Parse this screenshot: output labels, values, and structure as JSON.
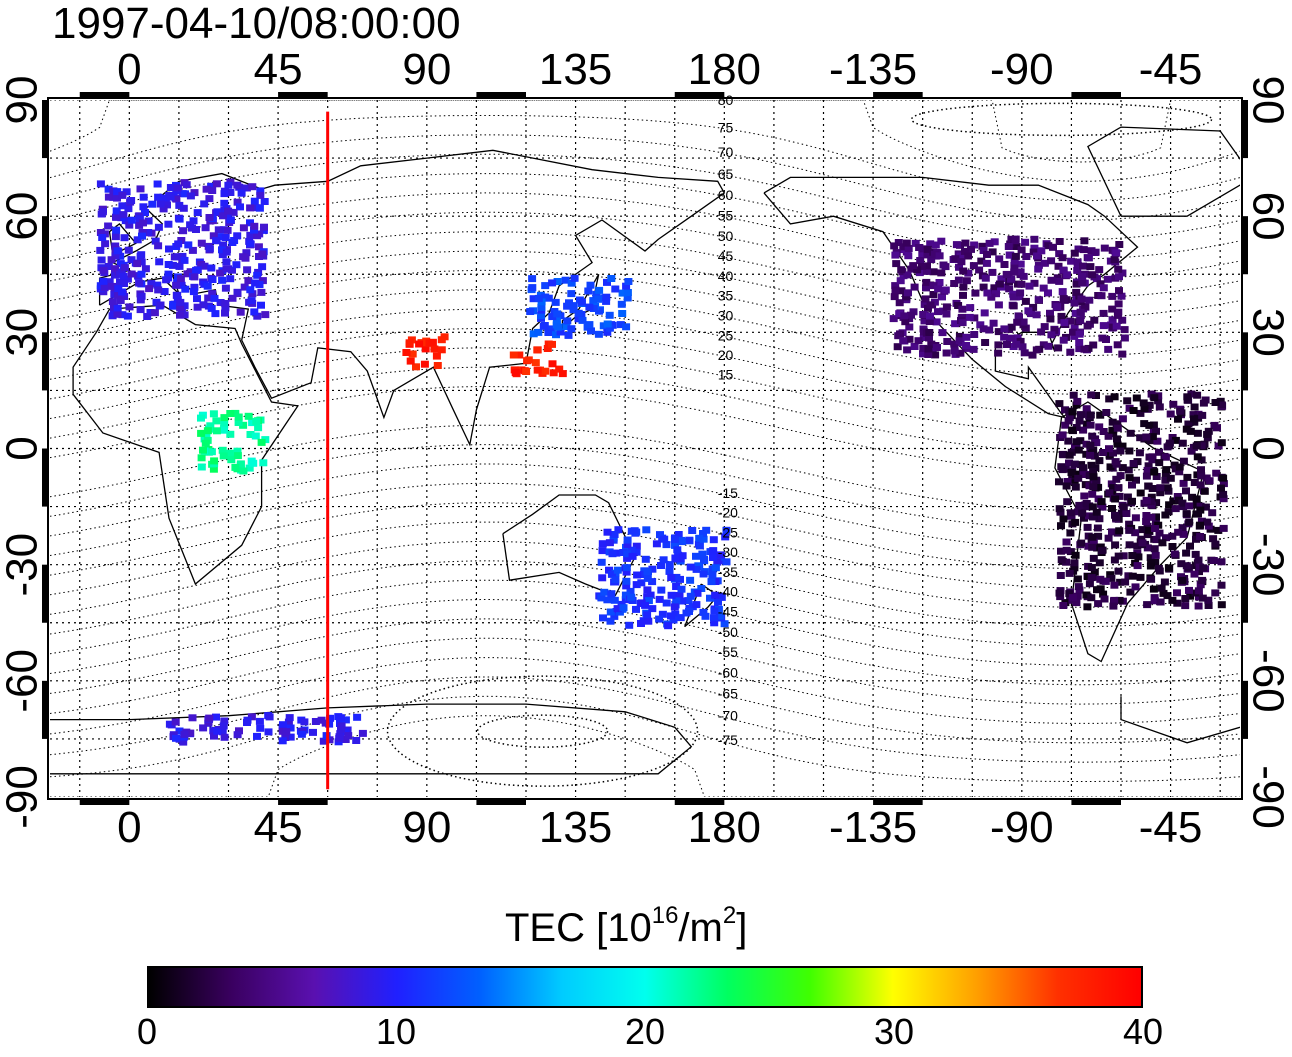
{
  "title": "1997-04-10/08:00:00",
  "map": {
    "lon_ticks_top": [
      "0",
      "45",
      "90",
      "135",
      "180",
      "-135",
      "-90",
      "-45"
    ],
    "lon_ticks_bottom": [
      "0",
      "45",
      "90",
      "135",
      "180",
      "-135",
      "-90",
      "-45"
    ],
    "lat_ticks_left": [
      "90",
      "60",
      "30",
      "0",
      "-30",
      "-60",
      "-90"
    ],
    "lat_ticks_right": [
      "90",
      "60",
      "30",
      "0",
      "-30",
      "-60",
      "-90"
    ],
    "lon_range": [
      -24,
      336
    ],
    "lat_range": [
      -90,
      90
    ],
    "grid": "dotted",
    "marker_line": {
      "lon": 60,
      "color": "#ff0000"
    },
    "contour_labels": [
      "80",
      "75",
      "70",
      "65",
      "60",
      "55",
      "50",
      "45",
      "40",
      "35",
      "30",
      "25",
      "20",
      "15",
      "-15",
      "-20",
      "-25",
      "-30",
      "-35",
      "-40",
      "-45",
      "-50",
      "-55",
      "-60",
      "-65",
      "-70",
      "-75"
    ]
  },
  "colorbar": {
    "title_text": "TEC  [10",
    "title_sup1": "16",
    "title_mid": "/m",
    "title_sup2": "2",
    "title_end": "]",
    "min": 0,
    "max": 40,
    "ticks": [
      "0",
      "10",
      "20",
      "30",
      "40"
    ],
    "colors": [
      "#000000",
      "#3a0060",
      "#5a10b0",
      "#2020ff",
      "#0060ff",
      "#00ccff",
      "#00ffee",
      "#00ff60",
      "#40ff00",
      "#ffff00",
      "#ffa000",
      "#ff3000",
      "#ff0000"
    ]
  },
  "chart_data": {
    "type": "heatmap",
    "title": "1997-04-10/08:00:00",
    "xlim": [
      -24,
      336
    ],
    "ylim": [
      -90,
      90
    ],
    "value_label": "TEC  [10^16/m^2]",
    "value_range": [
      0,
      40
    ],
    "regions": [
      {
        "lon": [
          -10,
          40
        ],
        "lat": [
          35,
          70
        ],
        "tec": 9
      },
      {
        "lon": [
          120,
          150
        ],
        "lat": [
          30,
          45
        ],
        "tec": 12
      },
      {
        "lon": [
          115,
          130
        ],
        "lat": [
          20,
          28
        ],
        "tec": 38
      },
      {
        "lon": [
          82,
          95
        ],
        "lat": [
          22,
          30
        ],
        "tec": 38
      },
      {
        "lon": [
          230,
          300
        ],
        "lat": [
          25,
          55
        ],
        "tec": 4
      },
      {
        "lon": [
          280,
          330
        ],
        "lat": [
          -40,
          15
        ],
        "tec": 2
      },
      {
        "lon": [
          10,
          70
        ],
        "lat": [
          -75,
          -68
        ],
        "tec": 9
      },
      {
        "lon": [
          20,
          40
        ],
        "lat": [
          -5,
          10
        ],
        "tec": 22
      },
      {
        "lon": [
          140,
          180
        ],
        "lat": [
          -45,
          -20
        ],
        "tec": 11
      }
    ]
  }
}
